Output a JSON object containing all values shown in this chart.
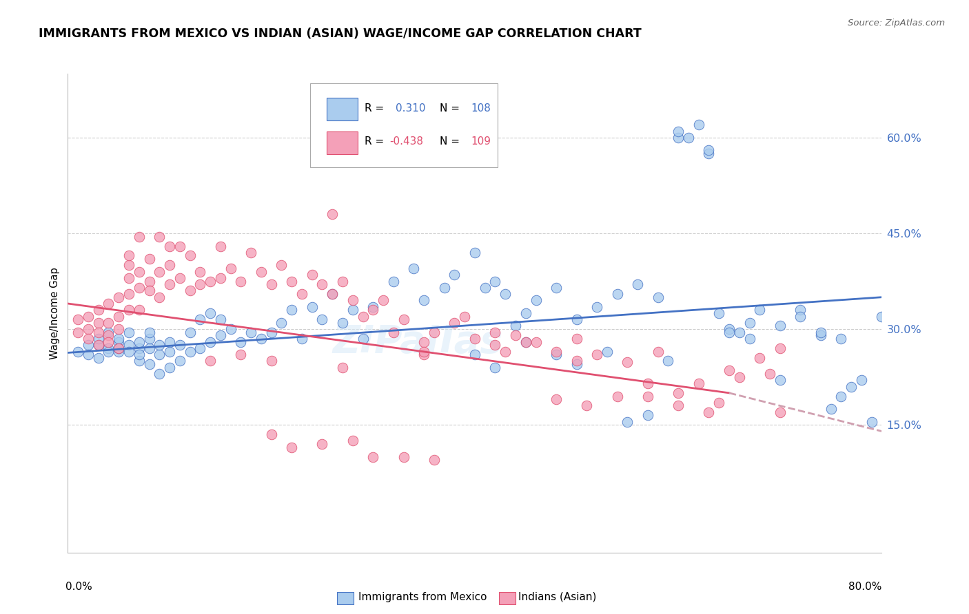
{
  "title": "IMMIGRANTS FROM MEXICO VS INDIAN (ASIAN) WAGE/INCOME GAP CORRELATION CHART",
  "source": "Source: ZipAtlas.com",
  "ylabel": "Wage/Income Gap",
  "ytick_labels": [
    "15.0%",
    "30.0%",
    "45.0%",
    "60.0%"
  ],
  "ytick_vals": [
    0.15,
    0.3,
    0.45,
    0.6
  ],
  "xlim": [
    0.0,
    0.8
  ],
  "ylim": [
    -0.05,
    0.7
  ],
  "color_blue": "#AACCEE",
  "color_pink": "#F4A0B8",
  "color_trend_blue": "#4472C4",
  "color_trend_pink": "#E05070",
  "color_trend_pink_dash": "#D0A0B0",
  "blue_x": [
    0.01,
    0.02,
    0.02,
    0.03,
    0.03,
    0.03,
    0.04,
    0.04,
    0.04,
    0.05,
    0.05,
    0.05,
    0.05,
    0.06,
    0.06,
    0.06,
    0.07,
    0.07,
    0.07,
    0.07,
    0.08,
    0.08,
    0.08,
    0.08,
    0.09,
    0.09,
    0.09,
    0.1,
    0.1,
    0.1,
    0.11,
    0.11,
    0.12,
    0.12,
    0.13,
    0.13,
    0.14,
    0.14,
    0.15,
    0.15,
    0.16,
    0.17,
    0.18,
    0.19,
    0.2,
    0.21,
    0.22,
    0.23,
    0.24,
    0.25,
    0.26,
    0.27,
    0.28,
    0.29,
    0.3,
    0.32,
    0.34,
    0.35,
    0.37,
    0.38,
    0.4,
    0.41,
    0.42,
    0.43,
    0.44,
    0.45,
    0.46,
    0.48,
    0.5,
    0.52,
    0.54,
    0.56,
    0.58,
    0.6,
    0.62,
    0.63,
    0.64,
    0.65,
    0.66,
    0.67,
    0.68,
    0.7,
    0.72,
    0.74,
    0.75,
    0.76,
    0.77,
    0.78,
    0.79,
    0.8,
    0.55,
    0.57,
    0.59,
    0.6,
    0.61,
    0.63,
    0.65,
    0.67,
    0.7,
    0.72,
    0.74,
    0.76,
    0.4,
    0.42,
    0.45,
    0.48,
    0.5,
    0.53
  ],
  "blue_y": [
    0.265,
    0.275,
    0.26,
    0.275,
    0.285,
    0.255,
    0.27,
    0.295,
    0.265,
    0.265,
    0.28,
    0.27,
    0.285,
    0.275,
    0.295,
    0.265,
    0.25,
    0.27,
    0.28,
    0.26,
    0.245,
    0.27,
    0.285,
    0.295,
    0.23,
    0.26,
    0.275,
    0.24,
    0.265,
    0.28,
    0.25,
    0.275,
    0.265,
    0.295,
    0.27,
    0.315,
    0.28,
    0.325,
    0.29,
    0.315,
    0.3,
    0.28,
    0.295,
    0.285,
    0.295,
    0.31,
    0.33,
    0.285,
    0.335,
    0.315,
    0.355,
    0.31,
    0.33,
    0.285,
    0.335,
    0.375,
    0.395,
    0.345,
    0.365,
    0.385,
    0.42,
    0.365,
    0.375,
    0.355,
    0.305,
    0.325,
    0.345,
    0.365,
    0.315,
    0.335,
    0.355,
    0.37,
    0.35,
    0.6,
    0.62,
    0.575,
    0.325,
    0.3,
    0.295,
    0.31,
    0.33,
    0.305,
    0.33,
    0.29,
    0.175,
    0.195,
    0.21,
    0.22,
    0.155,
    0.32,
    0.155,
    0.165,
    0.25,
    0.61,
    0.6,
    0.58,
    0.295,
    0.285,
    0.22,
    0.32,
    0.295,
    0.285,
    0.26,
    0.24,
    0.28,
    0.26,
    0.245,
    0.265
  ],
  "pink_x": [
    0.01,
    0.01,
    0.02,
    0.02,
    0.02,
    0.03,
    0.03,
    0.03,
    0.03,
    0.04,
    0.04,
    0.04,
    0.04,
    0.05,
    0.05,
    0.05,
    0.05,
    0.06,
    0.06,
    0.06,
    0.06,
    0.06,
    0.07,
    0.07,
    0.07,
    0.07,
    0.08,
    0.08,
    0.08,
    0.09,
    0.09,
    0.09,
    0.1,
    0.1,
    0.1,
    0.11,
    0.11,
    0.12,
    0.12,
    0.13,
    0.13,
    0.14,
    0.15,
    0.15,
    0.16,
    0.17,
    0.18,
    0.19,
    0.2,
    0.21,
    0.22,
    0.23,
    0.24,
    0.25,
    0.26,
    0.27,
    0.28,
    0.29,
    0.3,
    0.31,
    0.32,
    0.33,
    0.35,
    0.36,
    0.38,
    0.4,
    0.42,
    0.44,
    0.46,
    0.48,
    0.5,
    0.52,
    0.55,
    0.58,
    0.6,
    0.62,
    0.65,
    0.68,
    0.7,
    0.2,
    0.22,
    0.25,
    0.28,
    0.3,
    0.33,
    0.36,
    0.39,
    0.42,
    0.45,
    0.48,
    0.51,
    0.54,
    0.57,
    0.6,
    0.63,
    0.66,
    0.69,
    0.26,
    0.35,
    0.43,
    0.5,
    0.57,
    0.64,
    0.7,
    0.14,
    0.17,
    0.2,
    0.27,
    0.35
  ],
  "pink_y": [
    0.295,
    0.315,
    0.3,
    0.32,
    0.285,
    0.31,
    0.295,
    0.33,
    0.275,
    0.29,
    0.31,
    0.28,
    0.34,
    0.3,
    0.32,
    0.35,
    0.27,
    0.38,
    0.355,
    0.4,
    0.33,
    0.415,
    0.365,
    0.39,
    0.33,
    0.445,
    0.375,
    0.41,
    0.36,
    0.35,
    0.39,
    0.445,
    0.37,
    0.4,
    0.43,
    0.38,
    0.43,
    0.36,
    0.415,
    0.39,
    0.37,
    0.375,
    0.38,
    0.43,
    0.395,
    0.375,
    0.42,
    0.39,
    0.37,
    0.4,
    0.375,
    0.355,
    0.385,
    0.37,
    0.355,
    0.375,
    0.345,
    0.32,
    0.33,
    0.345,
    0.295,
    0.315,
    0.28,
    0.295,
    0.31,
    0.285,
    0.275,
    0.29,
    0.28,
    0.265,
    0.285,
    0.26,
    0.248,
    0.265,
    0.2,
    0.215,
    0.235,
    0.255,
    0.27,
    0.135,
    0.115,
    0.12,
    0.125,
    0.1,
    0.1,
    0.095,
    0.32,
    0.295,
    0.28,
    0.19,
    0.18,
    0.195,
    0.215,
    0.18,
    0.17,
    0.225,
    0.23,
    0.48,
    0.26,
    0.265,
    0.25,
    0.195,
    0.185,
    0.17,
    0.25,
    0.26,
    0.25,
    0.24,
    0.265
  ]
}
